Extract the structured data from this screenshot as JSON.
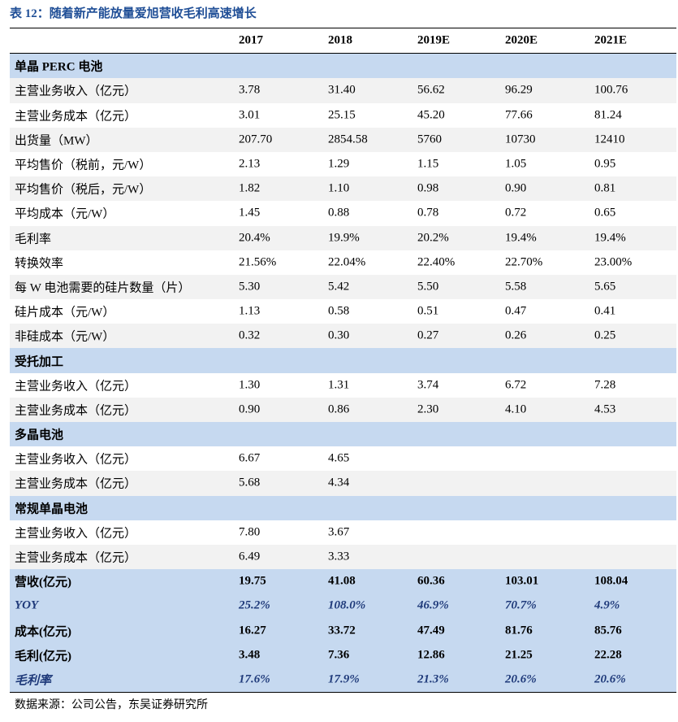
{
  "title": "表 12：随着新产能放量爱旭营收毛利高速增长",
  "table": {
    "columns": [
      "2017",
      "2018",
      "2019E",
      "2020E",
      "2021E"
    ],
    "sections": [
      {
        "title": "单晶 PERC 电池",
        "rows": [
          {
            "label": "主营业务收入（亿元）",
            "values": [
              "3.78",
              "31.40",
              "56.62",
              "96.29",
              "100.76"
            ]
          },
          {
            "label": "主营业务成本（亿元）",
            "values": [
              "3.01",
              "25.15",
              "45.20",
              "77.66",
              "81.24"
            ]
          },
          {
            "label": "出货量（MW）",
            "values": [
              "207.70",
              "2854.58",
              "5760",
              "10730",
              "12410"
            ]
          },
          {
            "label": "平均售价（税前，元/W）",
            "values": [
              "2.13",
              "1.29",
              "1.15",
              "1.05",
              "0.95"
            ]
          },
          {
            "label": "平均售价（税后，元/W）",
            "values": [
              "1.82",
              "1.10",
              "0.98",
              "0.90",
              "0.81"
            ]
          },
          {
            "label": "平均成本（元/W）",
            "values": [
              "1.45",
              "0.88",
              "0.78",
              "0.72",
              "0.65"
            ]
          },
          {
            "label": "毛利率",
            "values": [
              "20.4%",
              "19.9%",
              "20.2%",
              "19.4%",
              "19.4%"
            ]
          },
          {
            "label": "转换效率",
            "values": [
              "21.56%",
              "22.04%",
              "22.40%",
              "22.70%",
              "23.00%"
            ]
          },
          {
            "label": "每 W 电池需要的硅片数量（片）",
            "values": [
              "5.30",
              "5.42",
              "5.50",
              "5.58",
              "5.65"
            ]
          },
          {
            "label": "硅片成本（元/W）",
            "values": [
              "1.13",
              "0.58",
              "0.51",
              "0.47",
              "0.41"
            ]
          },
          {
            "label": "非硅成本（元/W）",
            "values": [
              "0.32",
              "0.30",
              "0.27",
              "0.26",
              "0.25"
            ]
          }
        ]
      },
      {
        "title": "受托加工",
        "rows": [
          {
            "label": "主营业务收入（亿元）",
            "values": [
              "1.30",
              "1.31",
              "3.74",
              "6.72",
              "7.28"
            ]
          },
          {
            "label": "主营业务成本（亿元）",
            "values": [
              "0.90",
              "0.86",
              "2.30",
              "4.10",
              "4.53"
            ]
          }
        ]
      },
      {
        "title": "多晶电池",
        "rows": [
          {
            "label": "主营业务收入（亿元）",
            "values": [
              "6.67",
              "4.65"
            ]
          },
          {
            "label": "主营业务成本（亿元）",
            "values": [
              "5.68",
              "4.34"
            ]
          }
        ]
      },
      {
        "title": "常规单晶电池",
        "rows": [
          {
            "label": "主营业务收入（亿元）",
            "values": [
              "7.80",
              "3.67"
            ]
          },
          {
            "label": "主营业务成本（亿元）",
            "values": [
              "6.49",
              "3.33"
            ]
          }
        ]
      }
    ],
    "summary": [
      {
        "label": "营收(亿元)",
        "values": [
          "19.75",
          "41.08",
          "60.36",
          "103.01",
          "108.04"
        ]
      },
      {
        "label": "YOY",
        "values": [
          "25.2%",
          "108.0%",
          "46.9%",
          "70.7%",
          "4.9%"
        ]
      },
      {
        "label": "成本(亿元)",
        "values": [
          "16.27",
          "33.72",
          "47.49",
          "81.76",
          "85.76"
        ]
      },
      {
        "label": "毛利(亿元)",
        "values": [
          "3.48",
          "7.36",
          "12.86",
          "21.25",
          "22.28"
        ]
      },
      {
        "label": "毛利率",
        "values": [
          "17.6%",
          "17.9%",
          "21.3%",
          "20.6%",
          "20.6%"
        ]
      }
    ]
  },
  "source": "数据来源：公司公告，东吴证券研究所"
}
